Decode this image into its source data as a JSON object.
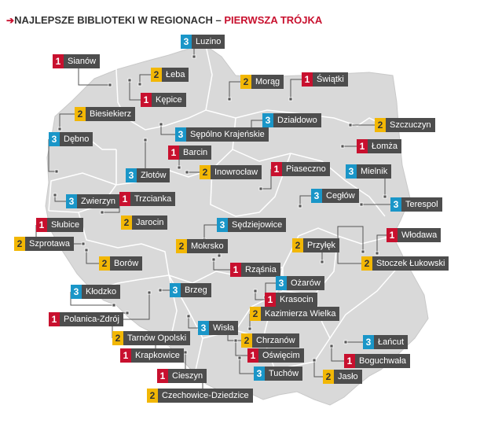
{
  "title": {
    "prefix": "NAJLEPSZE BIBLIOTEKI W REGIONACH",
    "separator": " – ",
    "highlight": "PIERWSZA TRÓJKA"
  },
  "colors": {
    "rank1": "#c8102e",
    "rank2": "#f2b705",
    "rank3": "#1a96c8",
    "label_bg": "#4d4d4d",
    "map_fill": "#d9d9d9",
    "border": "#ffffff"
  },
  "places": [
    {
      "rank": "3",
      "name": "Luzino"
    },
    {
      "rank": "1",
      "name": "Sianów"
    },
    {
      "rank": "2",
      "name": "Łeba"
    },
    {
      "rank": "2",
      "name": "Morąg"
    },
    {
      "rank": "1",
      "name": "Świątki"
    },
    {
      "rank": "1",
      "name": "Kępice"
    },
    {
      "rank": "2",
      "name": "Biesiekierz"
    },
    {
      "rank": "3",
      "name": "Działdowo"
    },
    {
      "rank": "2",
      "name": "Szczuczyn"
    },
    {
      "rank": "3",
      "name": "Sępólno Krajeńskie"
    },
    {
      "rank": "3",
      "name": "Dębno"
    },
    {
      "rank": "1",
      "name": "Barcin"
    },
    {
      "rank": "1",
      "name": "Łomża"
    },
    {
      "rank": "3",
      "name": "Złotów"
    },
    {
      "rank": "2",
      "name": "Inowrocław"
    },
    {
      "rank": "1",
      "name": "Piaseczno"
    },
    {
      "rank": "3",
      "name": "Mielnik"
    },
    {
      "rank": "3",
      "name": "Zwierzyn"
    },
    {
      "rank": "1",
      "name": "Trzcianka"
    },
    {
      "rank": "3",
      "name": "Cegłów"
    },
    {
      "rank": "3",
      "name": "Terespol"
    },
    {
      "rank": "1",
      "name": "Słubice"
    },
    {
      "rank": "2",
      "name": "Jarocin"
    },
    {
      "rank": "3",
      "name": "Sędziejowice"
    },
    {
      "rank": "1",
      "name": "Włodawa"
    },
    {
      "rank": "2",
      "name": "Szprotawa"
    },
    {
      "rank": "2",
      "name": "Mokrsko"
    },
    {
      "rank": "2",
      "name": "Przyłęk"
    },
    {
      "rank": "2",
      "name": "Borów"
    },
    {
      "rank": "2",
      "name": "Stoczek Łukowski"
    },
    {
      "rank": "1",
      "name": "Rząśnia"
    },
    {
      "rank": "3",
      "name": "Ożarów"
    },
    {
      "rank": "3",
      "name": "Kłodzko"
    },
    {
      "rank": "3",
      "name": "Brzeg"
    },
    {
      "rank": "1",
      "name": "Krasocin"
    },
    {
      "rank": "2",
      "name": "Kazimierza Wielka"
    },
    {
      "rank": "1",
      "name": "Polanica-Zdrój"
    },
    {
      "rank": "3",
      "name": "Wisła"
    },
    {
      "rank": "2",
      "name": "Tarnów Opolski"
    },
    {
      "rank": "2",
      "name": "Chrzanów"
    },
    {
      "rank": "3",
      "name": "Łańcut"
    },
    {
      "rank": "1",
      "name": "Oświęcim"
    },
    {
      "rank": "1",
      "name": "Krapkowice"
    },
    {
      "rank": "1",
      "name": "Boguchwała"
    },
    {
      "rank": "3",
      "name": "Tuchów"
    },
    {
      "rank": "1",
      "name": "Cieszyn"
    },
    {
      "rank": "2",
      "name": "Jasło"
    },
    {
      "rank": "2",
      "name": "Czechowice-Dziedzice"
    }
  ]
}
